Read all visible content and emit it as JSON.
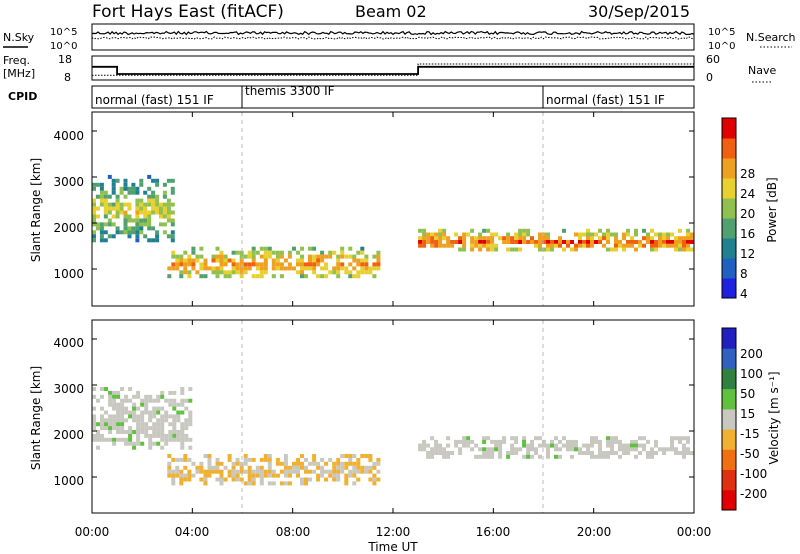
{
  "header": {
    "station": "Fort Hays East (fitACF)",
    "beam": "Beam 02",
    "date": "30/Sep/2015"
  },
  "noise_panel": {
    "left_label": "N.Sky",
    "left_ticks": [
      "10^5",
      "10^0"
    ],
    "right_ticks": [
      "10^5",
      "10^0"
    ],
    "right_label": "N.Search"
  },
  "freq_panel": {
    "left_label_1": "Freq.",
    "left_label_2": "[MHz]",
    "left_ticks": [
      "18",
      "8"
    ],
    "right_ticks": [
      "60",
      "0"
    ],
    "right_label": "Nave"
  },
  "cpid_panel": {
    "label": "CPID",
    "segments": [
      {
        "label": "normal (fast) 151 IF",
        "start": 0
      },
      {
        "label": "themis 3300 IF",
        "start": 6
      },
      {
        "label": "normal (fast) 151 IF",
        "start": 18
      }
    ]
  },
  "axes": {
    "ylabel": "Slant Range [km]",
    "yticks": [
      1000,
      2000,
      3000,
      4000
    ],
    "xlabel": "Time UT",
    "xticks": [
      "00:00",
      "04:00",
      "08:00",
      "12:00",
      "16:00",
      "20:00",
      "00:00"
    ]
  },
  "power_colorbar": {
    "label": "Power [dB]",
    "ticks": [
      "28",
      "24",
      "20",
      "16",
      "12",
      "8",
      "4"
    ],
    "colors": [
      "#2020e0",
      "#2060c0",
      "#208090",
      "#50a070",
      "#90c050",
      "#e8d030",
      "#f0a020",
      "#f06010",
      "#e00000"
    ]
  },
  "velocity_colorbar": {
    "label": "Velocity [m s⁻¹]",
    "ticks": [
      "200",
      "100",
      "50",
      "15",
      "-15",
      "-50",
      "-100",
      "-200"
    ],
    "colors": [
      "#2020c0",
      "#3060c0",
      "#308040",
      "#60c040",
      "#c8c8c0",
      "#f0b030",
      "#f07010",
      "#e03010",
      "#e00000"
    ]
  },
  "chart_data": [
    {
      "type": "line",
      "title": "N.Sky / N.Search",
      "x_range_hours": [
        0,
        24
      ],
      "note_series": [
        "N.Sky (solid, ~10^4)",
        "N.Search (dotted, ~10^3.5)"
      ]
    },
    {
      "type": "line",
      "title": "Freq. [MHz] / Nave",
      "x": [
        0,
        1,
        13,
        24
      ],
      "freq_mhz": [
        13.5,
        10.5,
        13.5,
        13.5
      ],
      "nave_approx": [
        12,
        12,
        40,
        40
      ]
    },
    {
      "type": "heatmap",
      "title": "Power [dB]",
      "xlabel": "Time UT",
      "ylabel": "Slant Range [km]",
      "x_range_hours": [
        0,
        24
      ],
      "y_range_km": [
        180,
        4500
      ],
      "z_range_db": [
        0,
        30
      ],
      "features": [
        {
          "name": "early patch",
          "t_start": 0.0,
          "t_end": 3.3,
          "range_km": [
            1600,
            3100
          ],
          "power_db": 18
        },
        {
          "name": "main band",
          "t_start": 3.0,
          "t_end": 11.5,
          "range_km": [
            800,
            1500
          ],
          "power_db": 24
        },
        {
          "name": "late band",
          "t_start": 13.0,
          "t_end": 24.0,
          "range_km": [
            1400,
            1900
          ],
          "power_db": 26
        }
      ]
    },
    {
      "type": "heatmap",
      "title": "Velocity [m s⁻¹]",
      "xlabel": "Time UT",
      "ylabel": "Slant Range [km]",
      "x_range_hours": [
        0,
        24
      ],
      "y_range_km": [
        180,
        4500
      ],
      "z_range_ms": [
        -200,
        200
      ],
      "features": [
        {
          "name": "ground scatter early",
          "t_start": 0.0,
          "t_end": 4.0,
          "range_km": [
            1600,
            3000
          ],
          "velocity_ms": 0
        },
        {
          "name": "slow negative band",
          "t_start": 3.0,
          "t_end": 11.5,
          "range_km": [
            800,
            1500
          ],
          "velocity_ms": -30
        },
        {
          "name": "ground scatter late",
          "t_start": 13.0,
          "t_end": 24.0,
          "range_km": [
            1400,
            1900
          ],
          "velocity_ms": 0
        }
      ]
    }
  ]
}
